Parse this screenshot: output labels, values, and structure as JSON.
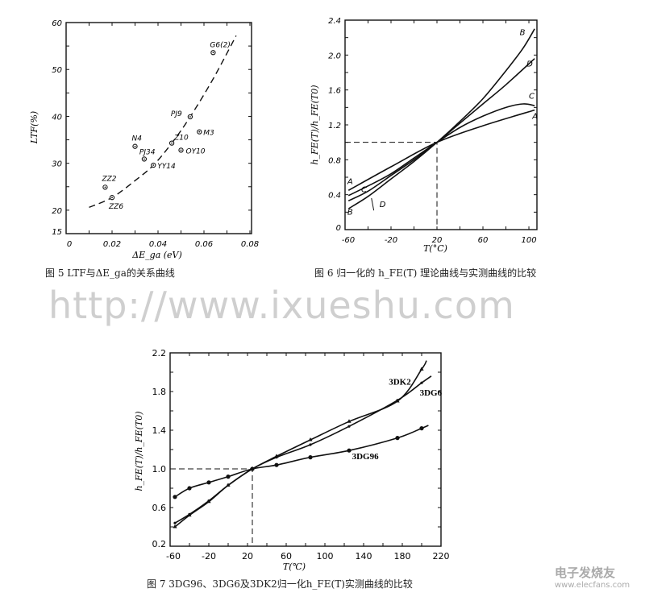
{
  "watermark": "http://www.ixueshu.com",
  "logo": {
    "name": "电子发烧友",
    "url": "www.elecfans.com"
  },
  "captions": {
    "fig5": "图 5  LTF与ΔE_ga的关系曲线",
    "fig6": "图 6  归一化的 h_FE(T) 理论曲线与实测曲线的比较",
    "fig7": "图 7  3DG96、3DG6及3DK2归一化h_FE(T)实测曲线的比较"
  },
  "chart_data": [
    {
      "id": "fig5",
      "type": "scatter",
      "title": "",
      "xlabel": "ΔE_ga (eV)",
      "ylabel": "LTF(%)",
      "xlim": [
        0,
        0.08
      ],
      "ylim": [
        15,
        60
      ],
      "xticks": [
        "0",
        "0.02",
        "0.04",
        "0.06",
        "0.08"
      ],
      "yticks": [
        "15",
        "20",
        "30",
        "40",
        "50",
        "60"
      ],
      "grid": false,
      "points": [
        {
          "label": "ZZ2",
          "x": 0.017,
          "y": 24.9
        },
        {
          "label": "ZZ6",
          "x": 0.02,
          "y": 22.7
        },
        {
          "label": "N4",
          "x": 0.03,
          "y": 33.6
        },
        {
          "label": "PJ34",
          "x": 0.034,
          "y": 30.9
        },
        {
          "label": "YY14",
          "x": 0.038,
          "y": 29.6
        },
        {
          "label": "Z10",
          "x": 0.046,
          "y": 34.3
        },
        {
          "label": "OY10",
          "x": 0.05,
          "y": 32.8
        },
        {
          "label": "PJ9",
          "x": 0.054,
          "y": 39.9
        },
        {
          "label": "M3",
          "x": 0.058,
          "y": 36.7
        },
        {
          "label": "G6(2)",
          "x": 0.064,
          "y": 53.6
        }
      ],
      "fit_curve": {
        "style": "dashed",
        "x": [
          0.01,
          0.02,
          0.03,
          0.038,
          0.046,
          0.054,
          0.064,
          0.074
        ],
        "y": [
          20.6,
          22.7,
          26.3,
          29.6,
          34.3,
          39.9,
          48.0,
          57.2
        ]
      }
    },
    {
      "id": "fig6",
      "type": "line",
      "title": "",
      "xlabel": "T(°C)",
      "ylabel": "h_FE(T)/h_FE(T0)",
      "xlim": [
        -60,
        107
      ],
      "ylim": [
        0,
        2.4
      ],
      "xticks": [
        "-60",
        "-20",
        "20",
        "60",
        "100"
      ],
      "yticks": [
        "0",
        "0.4",
        "0.8",
        "1.2",
        "1.6",
        "2.0",
        "2.4"
      ],
      "grid": false,
      "reference": {
        "x": 20,
        "y": 1.0,
        "style": "dashed"
      },
      "series": [
        {
          "name": "A",
          "x": [
            -57,
            -20,
            20,
            60,
            105
          ],
          "y": [
            0.45,
            0.72,
            1.0,
            1.19,
            1.37
          ]
        },
        {
          "name": "B",
          "x": [
            -57,
            -40,
            -20,
            0,
            20,
            40,
            60,
            80,
            95,
            105
          ],
          "y": [
            0.24,
            0.38,
            0.58,
            0.78,
            1.0,
            1.24,
            1.5,
            1.82,
            2.08,
            2.3
          ]
        },
        {
          "name": "C",
          "x": [
            -57,
            -40,
            -20,
            0,
            20,
            40,
            60,
            80,
            95,
            105
          ],
          "y": [
            0.39,
            0.5,
            0.64,
            0.82,
            1.0,
            1.17,
            1.3,
            1.4,
            1.44,
            1.42
          ]
        },
        {
          "name": "D",
          "x": [
            -57,
            -40,
            -20,
            0,
            20,
            40,
            60,
            80,
            105
          ],
          "y": [
            0.33,
            0.44,
            0.62,
            0.8,
            1.0,
            1.22,
            1.44,
            1.66,
            1.96
          ]
        }
      ]
    },
    {
      "id": "fig7",
      "type": "line",
      "title": "",
      "xlabel": "T(℃)",
      "ylabel": "h_FE(T)/h_FE(T0)",
      "xlim": [
        -60,
        220
      ],
      "ylim": [
        0.2,
        2.2
      ],
      "xticks": [
        "-60",
        "-20",
        "20",
        "60",
        "100",
        "140",
        "180",
        "220"
      ],
      "yticks": [
        "0.2",
        "0.6",
        "1.0",
        "1.4",
        "1.8",
        "2.2"
      ],
      "grid": false,
      "reference": {
        "x": 25,
        "y": 1.0,
        "style": "dashed"
      },
      "series": [
        {
          "name": "3DG96",
          "marker": "dot",
          "x": [
            -55,
            -40,
            -20,
            0,
            25,
            50,
            85,
            125,
            175,
            200,
            207
          ],
          "y": [
            0.71,
            0.8,
            0.86,
            0.92,
            1.0,
            1.04,
            1.12,
            1.19,
            1.32,
            1.42,
            1.45
          ]
        },
        {
          "name": "3DG6",
          "marker": "small-dot",
          "x": [
            -55,
            -40,
            -20,
            0,
            25,
            50,
            85,
            125,
            175,
            200,
            210
          ],
          "y": [
            0.44,
            0.53,
            0.67,
            0.83,
            1.0,
            1.12,
            1.25,
            1.44,
            1.71,
            1.89,
            1.96
          ]
        },
        {
          "name": "3DK2",
          "marker": "triangle",
          "x": [
            -55,
            -40,
            -20,
            0,
            25,
            50,
            85,
            125,
            175,
            200,
            205
          ],
          "y": [
            0.4,
            0.52,
            0.66,
            0.83,
            1.0,
            1.13,
            1.3,
            1.49,
            1.7,
            2.03,
            2.12
          ]
        }
      ]
    }
  ]
}
